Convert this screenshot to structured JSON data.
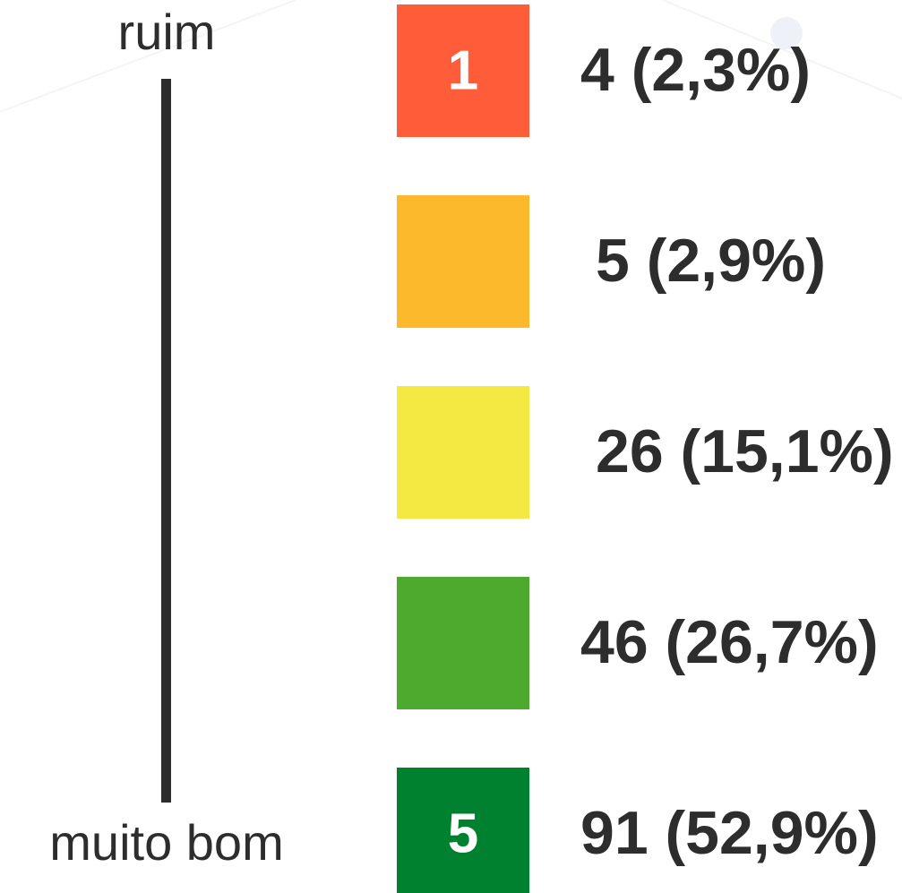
{
  "scale": {
    "top_label": "ruim",
    "bottom_label": "muito bom"
  },
  "items": [
    {
      "level": "1",
      "color": "#ff5c39",
      "result": "4 (2,3%)"
    },
    {
      "color": "#fdb92c",
      "result": "5 (2,9%)"
    },
    {
      "color": "#f4e842",
      "result": "26 (15,1%)"
    },
    {
      "color": "#4eaa2e",
      "result": "46 (26,7%)"
    },
    {
      "level": "5",
      "color": "#00812f",
      "result": "91 (52,9%)"
    }
  ]
}
